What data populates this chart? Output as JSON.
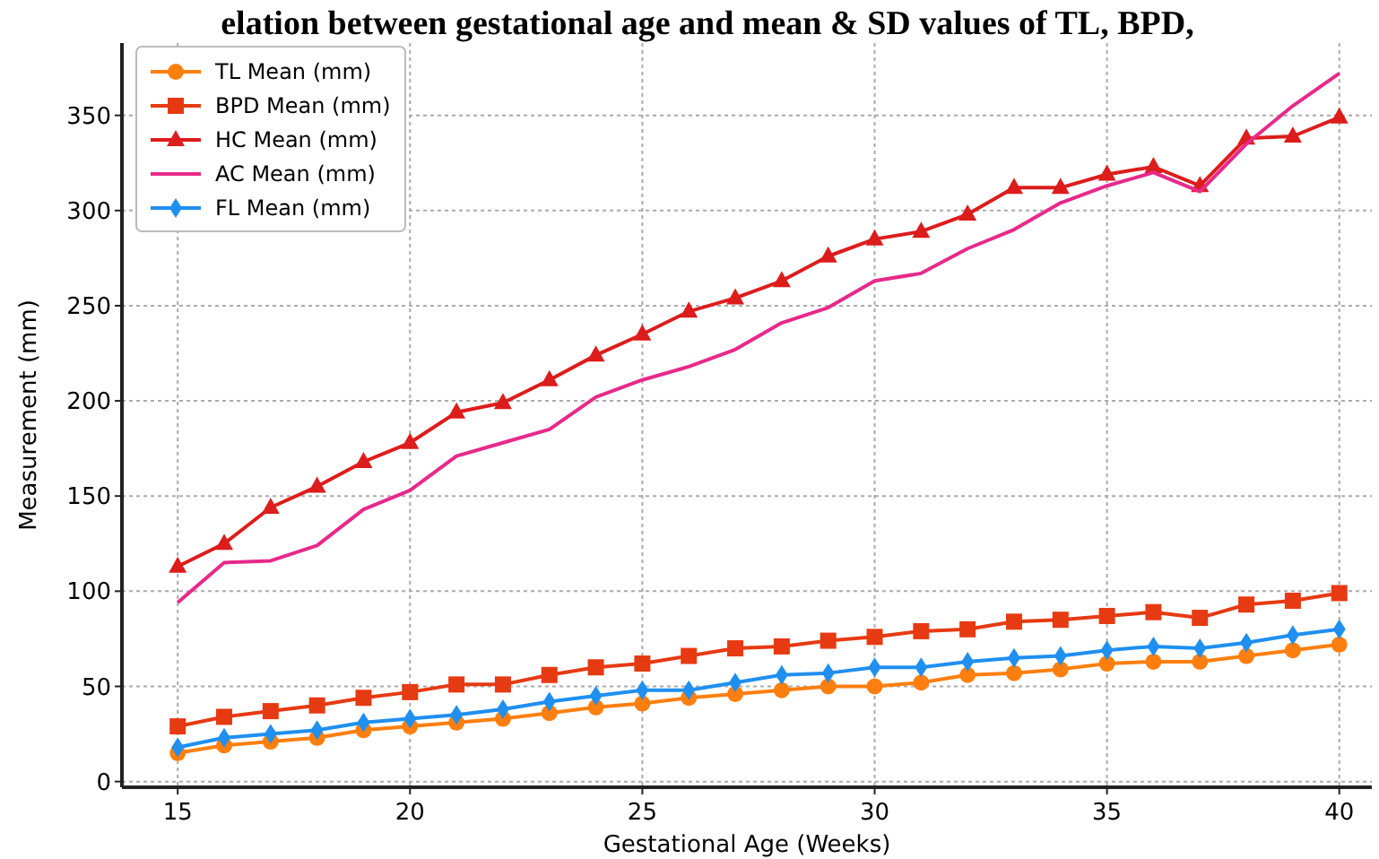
{
  "chart_data": {
    "type": "line",
    "title": "elation between gestational age and mean & SD values of TL, BPD,",
    "xlabel": "Gestational Age (Weeks)",
    "ylabel": "Measurement (mm)",
    "x": [
      15,
      16,
      17,
      18,
      19,
      20,
      21,
      22,
      23,
      24,
      25,
      26,
      27,
      28,
      29,
      30,
      31,
      32,
      33,
      34,
      35,
      36,
      37,
      38,
      39,
      40
    ],
    "xlim": [
      13.8,
      40.7
    ],
    "xticks": [
      15,
      20,
      25,
      30,
      35,
      40
    ],
    "ylim": [
      -3,
      388
    ],
    "yticks": [
      0,
      50,
      100,
      150,
      200,
      250,
      300,
      350
    ],
    "grid": true,
    "legend": "top left",
    "line_style": "solid",
    "series": [
      {
        "name": "TL Mean (mm)",
        "color": "#ff7f0e",
        "marker": "circle",
        "values": [
          15,
          19,
          21,
          23,
          27,
          29,
          31,
          33,
          36,
          39,
          41,
          44,
          46,
          48,
          50,
          50,
          52,
          56,
          57,
          59,
          62,
          63,
          63,
          66,
          69,
          72
        ]
      },
      {
        "name": "BPD Mean (mm)",
        "color": "#e63a12",
        "marker": "square",
        "values": [
          29,
          34,
          37,
          40,
          44,
          47,
          51,
          51,
          56,
          60,
          62,
          66,
          70,
          71,
          74,
          76,
          79,
          80,
          84,
          85,
          87,
          89,
          86,
          93,
          95,
          99
        ]
      },
      {
        "name": "HC Mean (mm)",
        "color": "#dd1c1c",
        "marker": "triangle",
        "values": [
          113,
          125,
          144,
          155,
          168,
          178,
          194,
          199,
          211,
          224,
          235,
          247,
          254,
          263,
          276,
          285,
          289,
          298,
          312,
          312,
          319,
          323,
          313,
          338,
          339,
          349
        ]
      },
      {
        "name": "AC Mean (mm)",
        "color": "#e7298a",
        "marker": "none",
        "values": [
          94,
          115,
          116,
          124,
          143,
          153,
          171,
          178,
          185,
          202,
          211,
          218,
          227,
          241,
          249,
          263,
          267,
          280,
          290,
          304,
          313,
          320,
          310,
          335,
          355,
          372
        ]
      },
      {
        "name": "FL Mean (mm)",
        "color": "#1f8ff0",
        "marker": "diamond",
        "values": [
          18,
          23,
          25,
          27,
          31,
          33,
          35,
          38,
          42,
          45,
          48,
          48,
          52,
          56,
          57,
          60,
          60,
          63,
          65,
          66,
          69,
          71,
          70,
          73,
          77,
          80
        ]
      }
    ]
  }
}
